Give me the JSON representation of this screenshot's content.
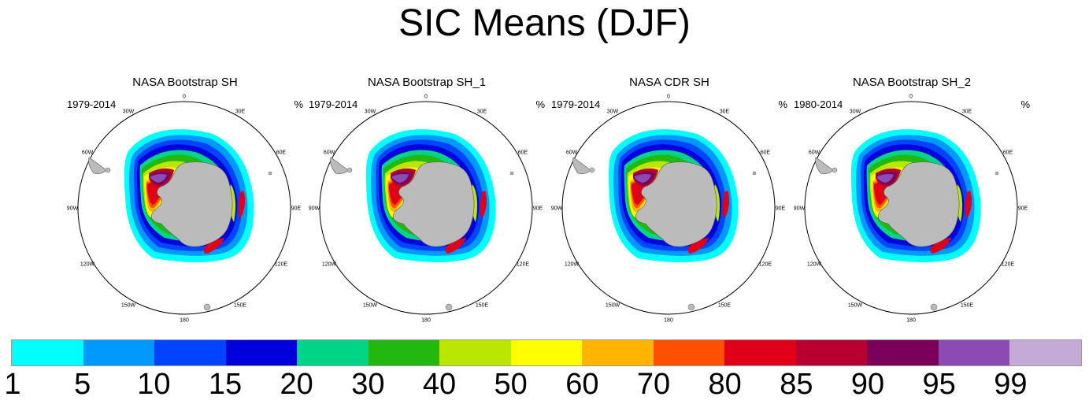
{
  "title": "SIC Means (DJF)",
  "units": "%",
  "panels": [
    {
      "title": "NASA Bootstrap SH",
      "period": "1979-2014"
    },
    {
      "title": "NASA Bootstrap SH_1",
      "period": "1979-2014"
    },
    {
      "title": "NASA CDR SH",
      "period": "1979-2014"
    },
    {
      "title": "NASA Bootstrap SH_2",
      "period": "1980-2014"
    }
  ],
  "longitude_labels": [
    "0",
    "30E",
    "60E",
    "90E",
    "120E",
    "150E",
    "180",
    "150W",
    "120W",
    "90W",
    "60W",
    "30W"
  ],
  "colorbar": {
    "labels": [
      "1",
      "5",
      "10",
      "15",
      "20",
      "30",
      "40",
      "50",
      "60",
      "70",
      "80",
      "85",
      "90",
      "95",
      "99"
    ],
    "colors": [
      "#00ffff",
      "#0099ff",
      "#0044ff",
      "#0000dd",
      "#00d486",
      "#22b810",
      "#bbe600",
      "#ffff00",
      "#ffb400",
      "#ff5000",
      "#e00018",
      "#b80030",
      "#7a005a",
      "#8c4ab4",
      "#c4aad6"
    ]
  },
  "map_colors": {
    "land": "#bbbbbb",
    "coast": "#555555",
    "sic_1": "#00ffff",
    "sic_5": "#0099ff",
    "sic_10": "#0044ff",
    "sic_15": "#0000dd",
    "sic_20": "#00d486",
    "sic_30": "#22b810",
    "sic_40": "#bbe600",
    "sic_50": "#ffff00",
    "sic_60": "#ffb400",
    "sic_70": "#ff5000",
    "sic_80": "#e00018",
    "sic_85": "#b80030",
    "sic_90": "#7a005a",
    "sic_95": "#8c4ab4"
  }
}
